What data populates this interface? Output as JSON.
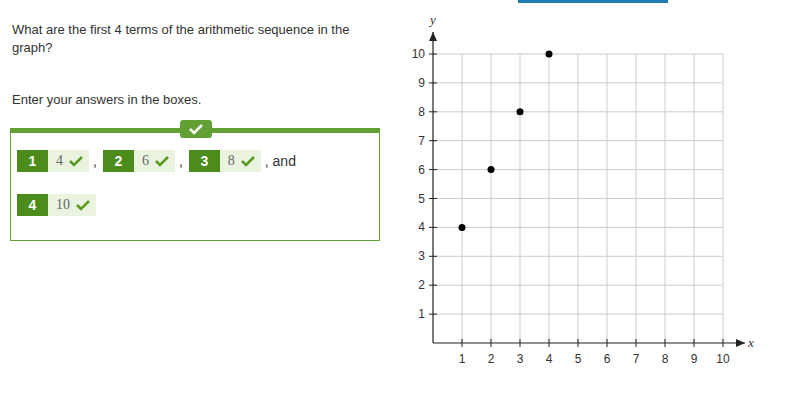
{
  "question": {
    "prompt": "What are the first 4 terms of the arithmetic sequence in the graph?",
    "instruction": "Enter your answers in the boxes.",
    "answers": [
      {
        "index": 1,
        "value": 4
      },
      {
        "index": 2,
        "value": 6
      },
      {
        "index": 3,
        "value": 8
      },
      {
        "index": 4,
        "value": 10
      }
    ],
    "separator": ",",
    "last_separator": ", and"
  },
  "chart_data": {
    "type": "scatter",
    "x_label": "x",
    "y_label": "y",
    "x": [
      1,
      2,
      3,
      4
    ],
    "values": [
      4,
      6,
      8,
      10
    ],
    "color": "#000000",
    "marker": "circle",
    "xlim": [
      0,
      10
    ],
    "ylim": [
      0,
      10
    ],
    "xticks": [
      1,
      2,
      3,
      4,
      5,
      6,
      7,
      8,
      9,
      10
    ],
    "yticks": [
      1,
      2,
      3,
      4,
      5,
      6,
      7,
      8,
      9,
      10
    ],
    "grid": true
  }
}
